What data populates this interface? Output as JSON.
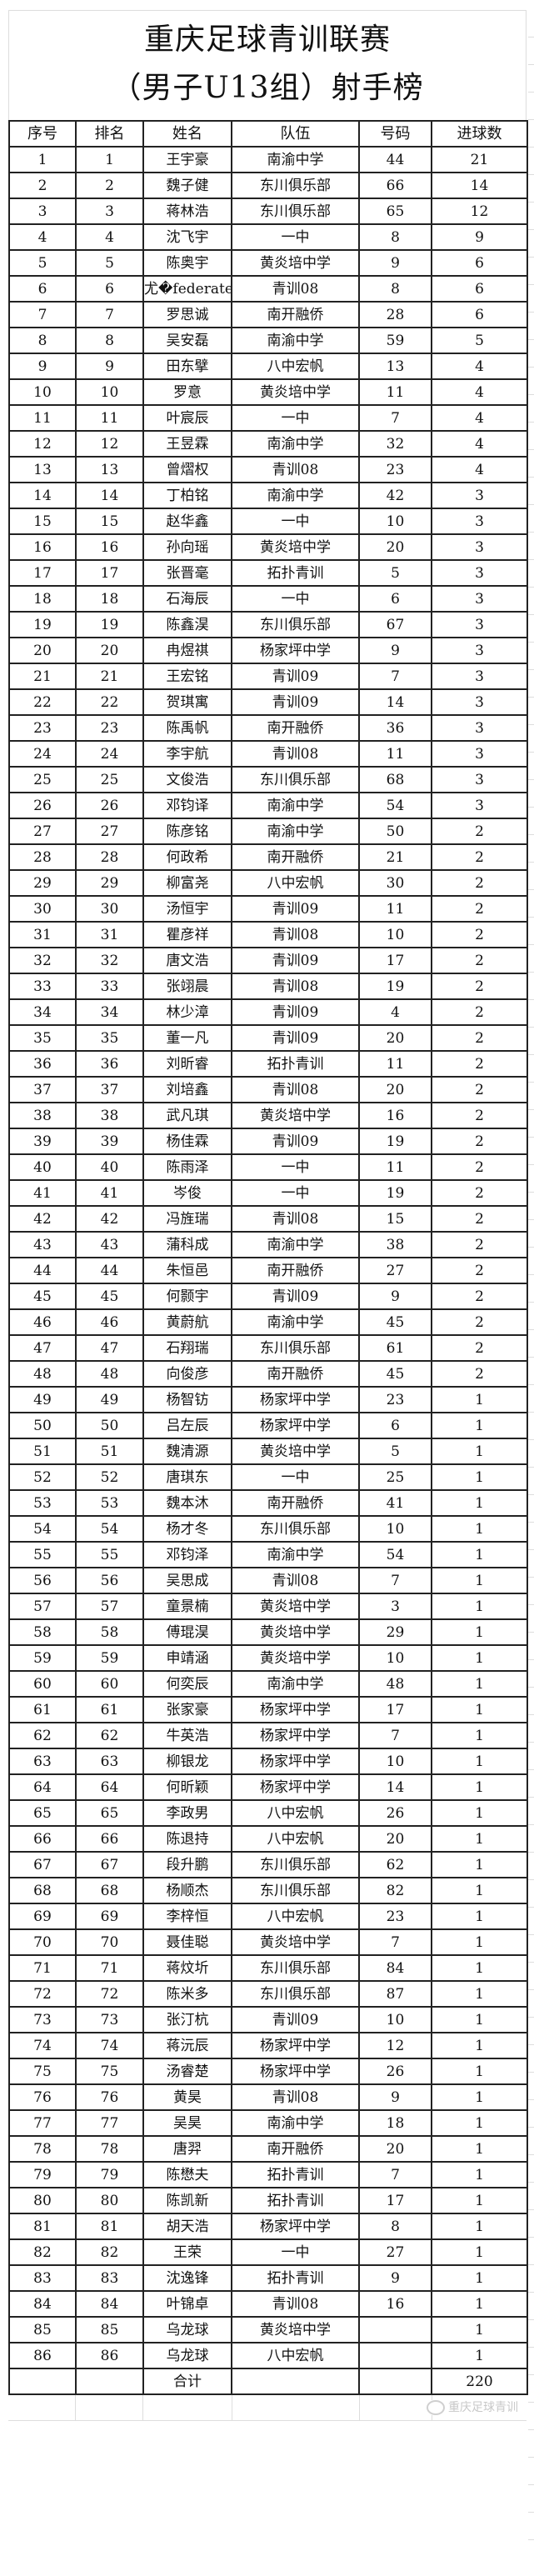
{
  "title": {
    "line1": "重庆足球青训联赛",
    "line2": "（男子U13组）射手榜"
  },
  "columns": [
    "序号",
    "排名",
    "姓名",
    "队伍",
    "号码",
    "进球数"
  ],
  "rows": [
    [
      "1",
      "1",
      "王宇豪",
      "南渝中学",
      "44",
      "21"
    ],
    [
      "2",
      "2",
      "魏子健",
      "东川俱乐部",
      "66",
      "14"
    ],
    [
      "3",
      "3",
      "蒋林浩",
      "东川俱乐部",
      "65",
      "12"
    ],
    [
      "4",
      "4",
      "沈飞宇",
      "一中",
      "8",
      "9"
    ],
    [
      "5",
      "5",
      "陈奥宇",
      "黄炎培中学",
      "9",
      "6"
    ],
    [
      "6",
      "6",
      "尤�federated",
      "青训08",
      "8",
      "6"
    ],
    [
      "7",
      "7",
      "罗思诚",
      "南开融侨",
      "28",
      "6"
    ],
    [
      "8",
      "8",
      "吴安磊",
      "南渝中学",
      "59",
      "5"
    ],
    [
      "9",
      "9",
      "田东擘",
      "八中宏帆",
      "13",
      "4"
    ],
    [
      "10",
      "10",
      "罗意",
      "黄炎培中学",
      "11",
      "4"
    ],
    [
      "11",
      "11",
      "叶宸辰",
      "一中",
      "7",
      "4"
    ],
    [
      "12",
      "12",
      "王昱霖",
      "南渝中学",
      "32",
      "4"
    ],
    [
      "13",
      "13",
      "曾熠权",
      "青训08",
      "23",
      "4"
    ],
    [
      "14",
      "14",
      "丁柏铭",
      "南渝中学",
      "42",
      "3"
    ],
    [
      "15",
      "15",
      "赵华鑫",
      "一中",
      "10",
      "3"
    ],
    [
      "16",
      "16",
      "孙向瑶",
      "黄炎培中学",
      "20",
      "3"
    ],
    [
      "17",
      "17",
      "张晋毫",
      "拓扑青训",
      "5",
      "3"
    ],
    [
      "18",
      "18",
      "石海辰",
      "一中",
      "6",
      "3"
    ],
    [
      "19",
      "19",
      "陈鑫淏",
      "东川俱乐部",
      "67",
      "3"
    ],
    [
      "20",
      "20",
      "冉煜祺",
      "杨家坪中学",
      "9",
      "3"
    ],
    [
      "21",
      "21",
      "王宏铭",
      "青训09",
      "7",
      "3"
    ],
    [
      "22",
      "22",
      "贺琪寓",
      "青训09",
      "14",
      "3"
    ],
    [
      "23",
      "23",
      "陈禹帆",
      "南开融侨",
      "36",
      "3"
    ],
    [
      "24",
      "24",
      "李宇航",
      "青训08",
      "11",
      "3"
    ],
    [
      "25",
      "25",
      "文俊浩",
      "东川俱乐部",
      "68",
      "3"
    ],
    [
      "26",
      "26",
      "邓钧译",
      "南渝中学",
      "54",
      "3"
    ],
    [
      "27",
      "27",
      "陈彦铭",
      "南渝中学",
      "50",
      "2"
    ],
    [
      "28",
      "28",
      "何政希",
      "南开融侨",
      "21",
      "2"
    ],
    [
      "29",
      "29",
      "柳富尧",
      "八中宏帆",
      "30",
      "2"
    ],
    [
      "30",
      "30",
      "汤恒宇",
      "青训09",
      "11",
      "2"
    ],
    [
      "31",
      "31",
      "瞿彦祥",
      "青训08",
      "10",
      "2"
    ],
    [
      "32",
      "32",
      "唐文浩",
      "青训09",
      "17",
      "2"
    ],
    [
      "33",
      "33",
      "张翊晨",
      "青训08",
      "19",
      "2"
    ],
    [
      "34",
      "34",
      "林少漳",
      "青训09",
      "4",
      "2"
    ],
    [
      "35",
      "35",
      "董一凡",
      "青训09",
      "20",
      "2"
    ],
    [
      "36",
      "36",
      "刘昕睿",
      "拓扑青训",
      "11",
      "2"
    ],
    [
      "37",
      "37",
      "刘培鑫",
      "青训08",
      "20",
      "2"
    ],
    [
      "38",
      "38",
      "武凡琪",
      "黄炎培中学",
      "16",
      "2"
    ],
    [
      "39",
      "39",
      "杨佳霖",
      "青训09",
      "19",
      "2"
    ],
    [
      "40",
      "40",
      "陈雨泽",
      "一中",
      "11",
      "2"
    ],
    [
      "41",
      "41",
      "岑俊",
      "一中",
      "19",
      "2"
    ],
    [
      "42",
      "42",
      "冯旌瑞",
      "青训08",
      "15",
      "2"
    ],
    [
      "43",
      "43",
      "蒲科成",
      "南渝中学",
      "38",
      "2"
    ],
    [
      "44",
      "44",
      "朱恒邑",
      "南开融侨",
      "27",
      "2"
    ],
    [
      "45",
      "45",
      "何颢宇",
      "青训09",
      "9",
      "2"
    ],
    [
      "46",
      "46",
      "黄蔚航",
      "南渝中学",
      "45",
      "2"
    ],
    [
      "47",
      "47",
      "石翔瑞",
      "东川俱乐部",
      "61",
      "2"
    ],
    [
      "48",
      "48",
      "向俊彦",
      "南开融侨",
      "45",
      "2"
    ],
    [
      "49",
      "49",
      "杨智钫",
      "杨家坪中学",
      "23",
      "1"
    ],
    [
      "50",
      "50",
      "吕左辰",
      "杨家坪中学",
      "6",
      "1"
    ],
    [
      "51",
      "51",
      "魏清源",
      "黄炎培中学",
      "5",
      "1"
    ],
    [
      "52",
      "52",
      "唐琪东",
      "一中",
      "25",
      "1"
    ],
    [
      "53",
      "53",
      "魏本沐",
      "南开融侨",
      "41",
      "1"
    ],
    [
      "54",
      "54",
      "杨才冬",
      "东川俱乐部",
      "10",
      "1"
    ],
    [
      "55",
      "55",
      "邓钧泽",
      "南渝中学",
      "54",
      "1"
    ],
    [
      "56",
      "56",
      "吴思成",
      "青训08",
      "7",
      "1"
    ],
    [
      "57",
      "57",
      "童景楠",
      "黄炎培中学",
      "3",
      "1"
    ],
    [
      "58",
      "58",
      "傅琨淏",
      "黄炎培中学",
      "29",
      "1"
    ],
    [
      "59",
      "59",
      "申靖涵",
      "黄炎培中学",
      "10",
      "1"
    ],
    [
      "60",
      "60",
      "何奕辰",
      "南渝中学",
      "48",
      "1"
    ],
    [
      "61",
      "61",
      "张家豪",
      "杨家坪中学",
      "17",
      "1"
    ],
    [
      "62",
      "62",
      "牛英浩",
      "杨家坪中学",
      "7",
      "1"
    ],
    [
      "63",
      "63",
      "柳银龙",
      "杨家坪中学",
      "10",
      "1"
    ],
    [
      "64",
      "64",
      "何昕颖",
      "杨家坪中学",
      "14",
      "1"
    ],
    [
      "65",
      "65",
      "李政男",
      "八中宏帆",
      "26",
      "1"
    ],
    [
      "66",
      "66",
      "陈退持",
      "八中宏帆",
      "20",
      "1"
    ],
    [
      "67",
      "67",
      "段升鹏",
      "东川俱乐部",
      "62",
      "1"
    ],
    [
      "68",
      "68",
      "杨顺杰",
      "东川俱乐部",
      "82",
      "1"
    ],
    [
      "69",
      "69",
      "李梓恒",
      "八中宏帆",
      "23",
      "1"
    ],
    [
      "70",
      "70",
      "聂佳聪",
      "黄炎培中学",
      "7",
      "1"
    ],
    [
      "71",
      "71",
      "蒋炆圻",
      "东川俱乐部",
      "84",
      "1"
    ],
    [
      "72",
      "72",
      "陈米多",
      "东川俱乐部",
      "87",
      "1"
    ],
    [
      "73",
      "73",
      "张汀杭",
      "青训09",
      "10",
      "1"
    ],
    [
      "74",
      "74",
      "蒋沅辰",
      "杨家坪中学",
      "12",
      "1"
    ],
    [
      "75",
      "75",
      "汤睿楚",
      "杨家坪中学",
      "26",
      "1"
    ],
    [
      "76",
      "76",
      "黄昊",
      "青训08",
      "9",
      "1"
    ],
    [
      "77",
      "77",
      "吴昊",
      "南渝中学",
      "18",
      "1"
    ],
    [
      "78",
      "78",
      "唐羿",
      "南开融侨",
      "20",
      "1"
    ],
    [
      "79",
      "79",
      "陈懋夫",
      "拓扑青训",
      "7",
      "1"
    ],
    [
      "80",
      "80",
      "陈凯新",
      "拓扑青训",
      "17",
      "1"
    ],
    [
      "81",
      "81",
      "胡天浩",
      "杨家坪中学",
      "8",
      "1"
    ],
    [
      "82",
      "82",
      "王荣",
      "一中",
      "27",
      "1"
    ],
    [
      "83",
      "83",
      "沈逸锋",
      "拓扑青训",
      "9",
      "1"
    ],
    [
      "84",
      "84",
      "叶锦卓",
      "青训08",
      "16",
      "1"
    ],
    [
      "85",
      "85",
      "乌龙球",
      "黄炎培中学",
      "",
      "1"
    ],
    [
      "86",
      "86",
      "乌龙球",
      "八中宏帆",
      "",
      "1"
    ]
  ],
  "total": {
    "label": "合计",
    "goals": "220"
  },
  "watermark": {
    "text": "重庆足球青训",
    "icon": "wechat-icon"
  }
}
